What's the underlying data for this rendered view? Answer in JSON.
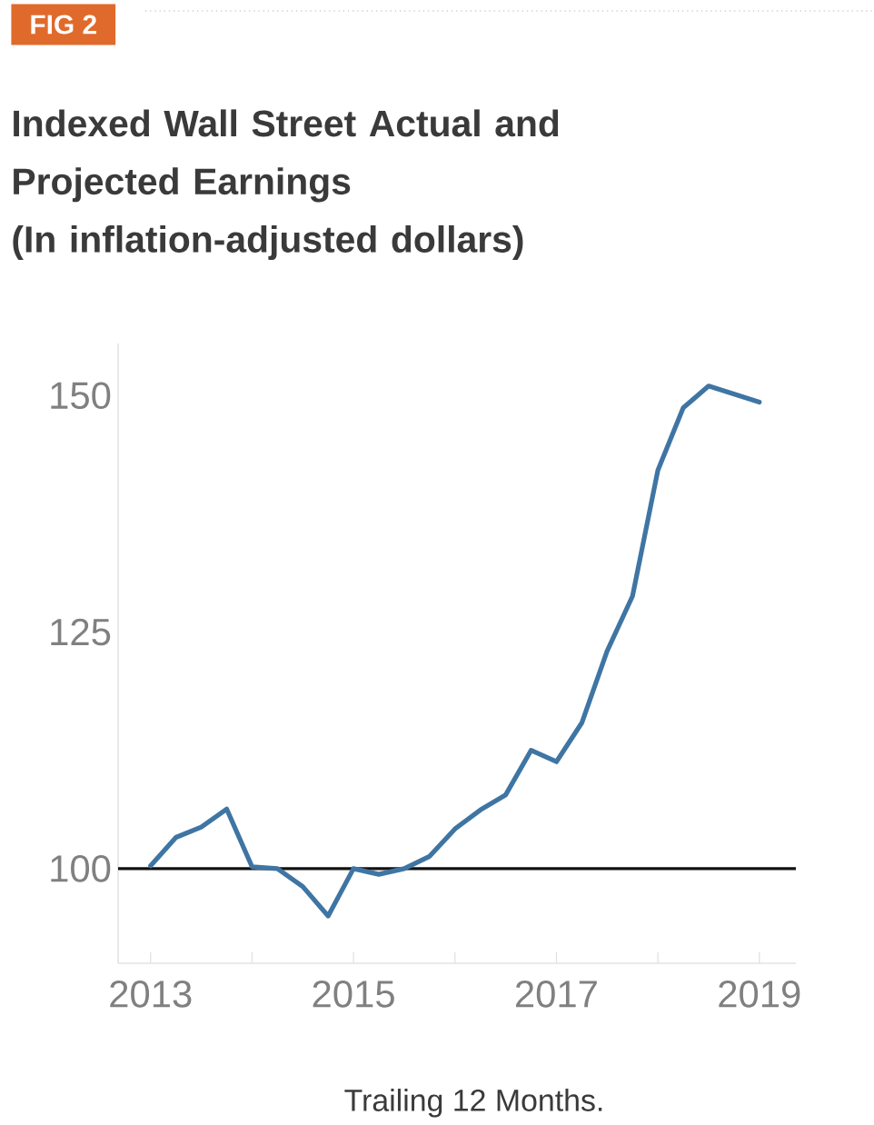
{
  "chart_data": {
    "type": "line",
    "title": "Indexed Wall Street Actual and Projected Earnings",
    "subtitle": "(In inflation-adjusted dollars)",
    "xlabel": "Trailing 12 Months.",
    "annotations": [
      "FIG 2"
    ],
    "x": [
      2013,
      2013.25,
      2013.5,
      2013.75,
      2014,
      2014.25,
      2014.5,
      2014.75,
      2015,
      2015.25,
      2015.5,
      2015.75,
      2016,
      2016.25,
      2016.5,
      2016.75,
      2017,
      2017.25,
      2017.5,
      2017.75,
      2018,
      2018.25,
      2018.5,
      2019
    ],
    "series": [
      {
        "color": "#3f75a3",
        "values": [
          100.3,
          103.3,
          104.4,
          106.3,
          100.2,
          100,
          98.1,
          95,
          100,
          99.4,
          100,
          101.3,
          104.2,
          106.2,
          107.8,
          112.5,
          111.3,
          115.4,
          123,
          128.8,
          142.1,
          148.7,
          151,
          149.3
        ]
      }
    ],
    "xlim": [
      2012.68,
      2019.36
    ],
    "ylim": [
      90,
      155.5
    ],
    "xticks": [
      2013,
      {
        "value": 2014,
        "label": null
      },
      2015,
      {
        "value": 2016,
        "label": null
      },
      2017,
      {
        "value": 2018,
        "label": null
      },
      2019
    ],
    "yticks": [
      100,
      125,
      150
    ],
    "ref_lines": [
      {
        "axis": "y",
        "value": 100,
        "color": "#111111"
      }
    ],
    "line_style": "solid"
  }
}
